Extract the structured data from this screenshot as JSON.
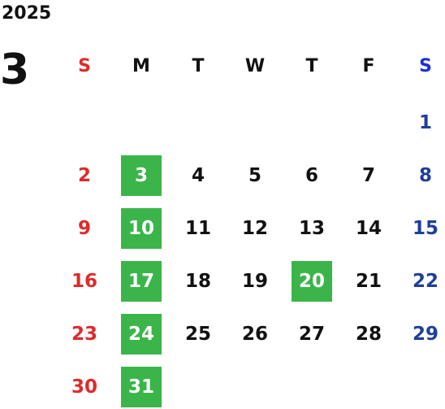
{
  "calendar": {
    "year": "2025",
    "month": "3",
    "weekdays": [
      "S",
      "M",
      "T",
      "W",
      "T",
      "F",
      "S"
    ],
    "weeks": [
      [
        "",
        "",
        "",
        "",
        "",
        "",
        "1"
      ],
      [
        "2",
        "3",
        "4",
        "5",
        "6",
        "7",
        "8"
      ],
      [
        "9",
        "10",
        "11",
        "12",
        "13",
        "14",
        "15"
      ],
      [
        "16",
        "17",
        "18",
        "19",
        "20",
        "21",
        "22"
      ],
      [
        "23",
        "24",
        "25",
        "26",
        "27",
        "28",
        "29"
      ],
      [
        "30",
        "31",
        "",
        "",
        "",
        "",
        ""
      ]
    ],
    "highlighted_days": [
      "3",
      "10",
      "17",
      "20",
      "24",
      "31"
    ],
    "colors": {
      "sunday": "#e02a2a",
      "saturday": "#1f3f9a",
      "saturday_header": "#1a2fd8",
      "highlight": "#3bb54a",
      "text": "#111111"
    }
  }
}
